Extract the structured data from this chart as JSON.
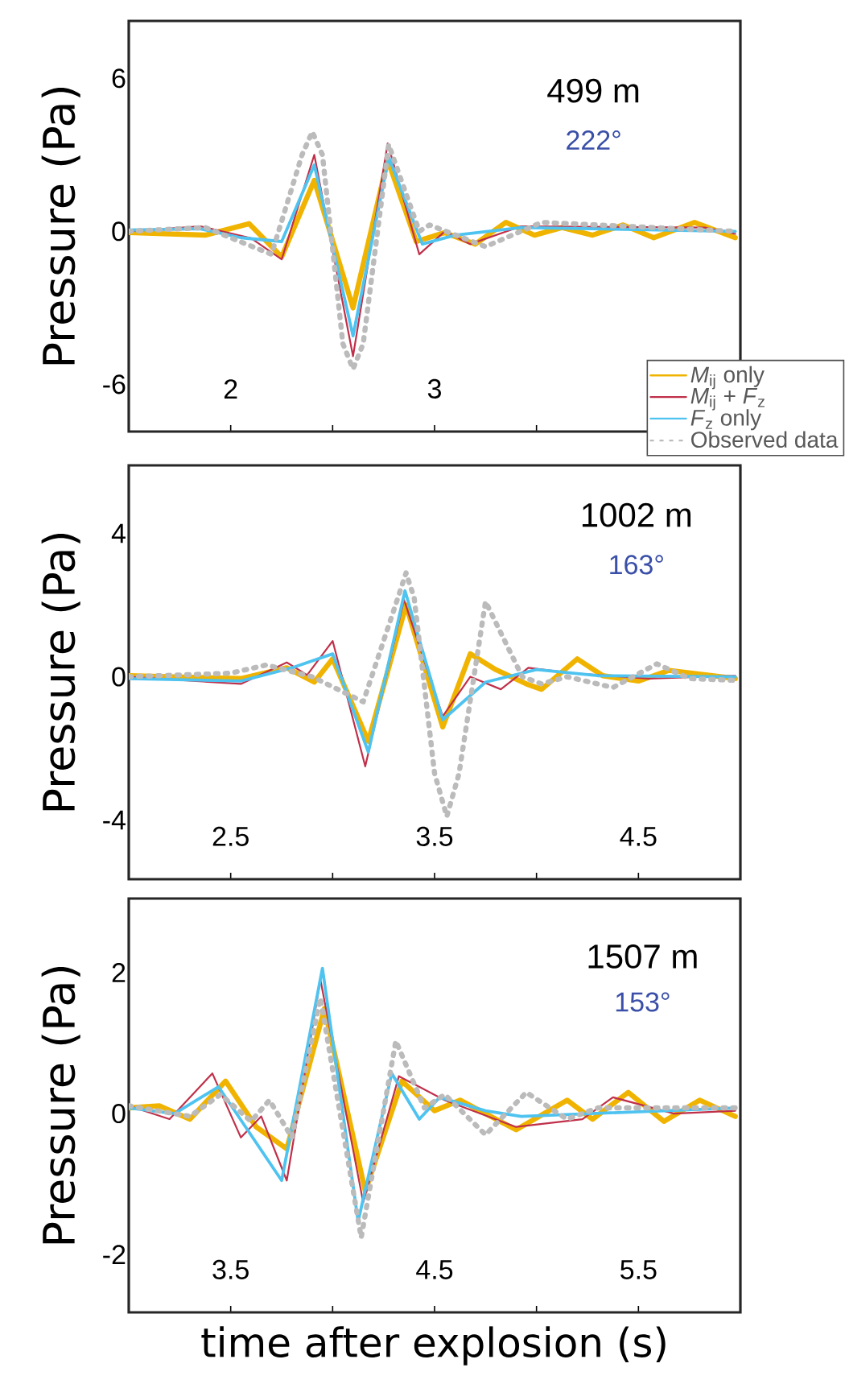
{
  "chart_data": [
    {
      "type": "line",
      "ylabel": "Pressure (Pa)",
      "annotations": [
        "499 m",
        "222°"
      ],
      "xlim": [
        1.5,
        4.5
      ],
      "ylim": [
        -7.85,
        8.25
      ],
      "xticks": [
        2,
        {
          "value": 2.5,
          "label": null
        },
        3,
        {
          "value": 3.5,
          "label": null
        }
      ],
      "yticks": [
        -6,
        0,
        6
      ],
      "legend": "bottom right",
      "series": [
        {
          "name": "*M*$_{ij}$ only",
          "color": "#f0b400",
          "line_style": "solid",
          "x": [
            1.5,
            1.875,
            2.09,
            2.25,
            2.41,
            2.6,
            2.77,
            2.91,
            3.05,
            3.2,
            3.35,
            3.49,
            3.625,
            3.775,
            3.925,
            4.075,
            4.275,
            4.475
          ],
          "values": [
            -0.05,
            -0.15,
            0.3,
            -1.0,
            2.0,
            -3.0,
            2.8,
            -0.4,
            -0.05,
            -0.5,
            0.35,
            -0.15,
            0.15,
            -0.15,
            0.25,
            -0.25,
            0.35,
            -0.25
          ]
        },
        {
          "name": "*M*$_{ij}$ + *F*$_{z}$",
          "color": "#c0304a",
          "line_style": "solid",
          "x": [
            1.5,
            1.85,
            2.1,
            2.25,
            2.41,
            2.6,
            2.77,
            2.925,
            3.05,
            3.175,
            3.425,
            4.325,
            4.475
          ],
          "values": [
            0,
            0.2,
            -0.27,
            -1.1,
            3.0,
            -4.9,
            3.45,
            -0.9,
            0,
            -0.5,
            0.2,
            0.15,
            -0.1
          ]
        },
        {
          "name": "*F*$_{z}$ only",
          "color": "#4fc3f0",
          "line_style": "solid",
          "x": [
            1.5,
            1.85,
            2.05,
            2.25,
            2.41,
            2.6,
            2.775,
            2.94,
            3.1,
            3.425,
            4.475
          ],
          "values": [
            0.05,
            0.1,
            -0.25,
            -0.4,
            2.6,
            -4.1,
            2.9,
            -0.5,
            -0.15,
            0.15,
            0
          ]
        },
        {
          "name": "Observed data",
          "color": "#bbbbbb",
          "line_style": "dashed",
          "x": [
            1.5,
            1.875,
            2.2,
            2.35,
            2.4,
            2.45,
            2.55,
            2.6,
            2.65,
            2.775,
            2.925,
            2.975,
            3.25,
            3.525,
            4.475
          ],
          "values": [
            0,
            0.15,
            -0.9,
            3.0,
            3.9,
            3.0,
            -4.4,
            -5.4,
            -4.4,
            3.4,
            0,
            0.25,
            -0.6,
            0.35,
            0
          ]
        }
      ]
    },
    {
      "type": "line",
      "ylabel": "Pressure (Pa)",
      "annotations": [
        "1002 m",
        "163°"
      ],
      "xlim": [
        2,
        5
      ],
      "ylim": [
        -5.65,
        5.9
      ],
      "xticks": [
        2.5,
        {
          "value": 3,
          "label": null
        },
        3.5,
        {
          "value": 4,
          "label": null
        },
        4.5
      ],
      "yticks": [
        -4,
        0,
        4
      ],
      "series": [
        {
          "color": "#f0b400",
          "line_style": "solid",
          "x": [
            2.0,
            2.55,
            2.775,
            2.91,
            3.0,
            3.175,
            3.36,
            3.54,
            3.675,
            3.8,
            3.95,
            4.025,
            4.2,
            4.325,
            4.5,
            4.65,
            4.975
          ],
          "values": [
            0.03,
            -0.05,
            0.25,
            -0.15,
            0.5,
            -1.8,
            2.0,
            -1.4,
            0.64,
            0.2,
            -0.2,
            -0.35,
            0.5,
            0.03,
            -0.12,
            0.18,
            -0.05
          ]
        },
        {
          "color": "#c0304a",
          "line_style": "solid",
          "x": [
            2.0,
            2.55,
            2.775,
            2.875,
            3.0,
            3.16,
            3.35,
            3.54,
            3.675,
            3.825,
            3.96,
            4.175,
            4.55,
            4.975
          ],
          "values": [
            0,
            -0.2,
            0.4,
            0.05,
            1.0,
            -2.5,
            2.15,
            -1.1,
            0,
            -0.35,
            0.25,
            0.1,
            -0.05,
            0.03
          ]
        },
        {
          "color": "#4fc3f0",
          "line_style": "solid",
          "x": [
            2.0,
            2.55,
            2.8,
            3.0,
            3.175,
            3.355,
            3.54,
            3.75,
            4.0,
            4.3,
            4.975
          ],
          "values": [
            -0.05,
            -0.12,
            0.25,
            0.64,
            -2.1,
            2.4,
            -1.2,
            -0.15,
            0.2,
            0.03,
            0
          ]
        },
        {
          "color": "#bbbbbb",
          "line_style": "dashed",
          "x": [
            2.0,
            2.5,
            2.675,
            2.9,
            3.15,
            3.32,
            3.36,
            3.4,
            3.5,
            3.56,
            3.62,
            3.75,
            3.93,
            4.025,
            4.15,
            4.375,
            4.59,
            4.75,
            4.975
          ],
          "values": [
            0,
            0.1,
            0.33,
            0,
            -0.7,
            2.2,
            2.9,
            2.2,
            -2.7,
            -3.9,
            -2.7,
            2.1,
            0,
            -0.2,
            0,
            -0.3,
            0.36,
            -0.05,
            -0.1
          ]
        }
      ]
    },
    {
      "type": "line",
      "xlabel": "time after explosion (s)",
      "ylabel": "Pressure (Pa)",
      "annotations": [
        "1507 m",
        "153°"
      ],
      "xlim": [
        3,
        6
      ],
      "ylim": [
        -2.82,
        3.05
      ],
      "xticks": [
        3.5,
        {
          "value": 4,
          "label": null
        },
        4.5,
        {
          "value": 5,
          "label": null
        },
        5.5
      ],
      "yticks": [
        -2,
        0,
        2
      ],
      "series": [
        {
          "color": "#f0b400",
          "line_style": "solid",
          "x": [
            3.0,
            3.15,
            3.3,
            3.475,
            3.625,
            3.775,
            3.96,
            4.16,
            4.34,
            4.5,
            4.625,
            4.9,
            5.15,
            5.275,
            5.45,
            5.625,
            5.8,
            5.975
          ],
          "values": [
            0.08,
            0.11,
            -0.08,
            0.46,
            -0.19,
            -0.5,
            1.49,
            -1.1,
            0.46,
            0.04,
            0.19,
            -0.23,
            0.19,
            -0.08,
            0.3,
            -0.11,
            0.19,
            -0.04
          ]
        },
        {
          "color": "#c0304a",
          "line_style": "solid",
          "x": [
            3.0,
            3.2,
            3.41,
            3.55,
            3.65,
            3.775,
            3.94,
            4.15,
            4.325,
            4.55,
            4.9,
            5.225,
            5.375,
            5.675,
            5.975
          ],
          "values": [
            0.11,
            -0.08,
            0.57,
            -0.34,
            -0.04,
            -0.95,
            1.9,
            -1.26,
            0.53,
            0.19,
            -0.19,
            -0.08,
            0.23,
            0,
            0.04
          ]
        },
        {
          "color": "#4fc3f0",
          "line_style": "solid",
          "x": [
            3.0,
            3.225,
            3.44,
            3.75,
            3.95,
            4.125,
            4.29,
            4.425,
            4.525,
            4.75,
            4.925,
            5.975
          ],
          "values": [
            0.08,
            0,
            0.38,
            -0.95,
            2.06,
            -1.53,
            0.57,
            -0.08,
            0.23,
            0.04,
            -0.04,
            0.08
          ]
        },
        {
          "color": "#bbbbbb",
          "line_style": "dashed",
          "x": [
            3.0,
            3.3,
            3.45,
            3.6,
            3.69,
            3.8,
            3.94,
            4.14,
            4.31,
            4.45,
            4.55,
            4.75,
            4.95,
            5.15,
            5.3,
            5.55,
            5.975
          ],
          "values": [
            0.11,
            -0.04,
            0.27,
            -0.11,
            0.19,
            -0.34,
            1.64,
            -1.76,
            1.03,
            0.08,
            0.27,
            -0.3,
            0.3,
            -0.08,
            0.08,
            0.08,
            0.08
          ]
        }
      ]
    }
  ]
}
